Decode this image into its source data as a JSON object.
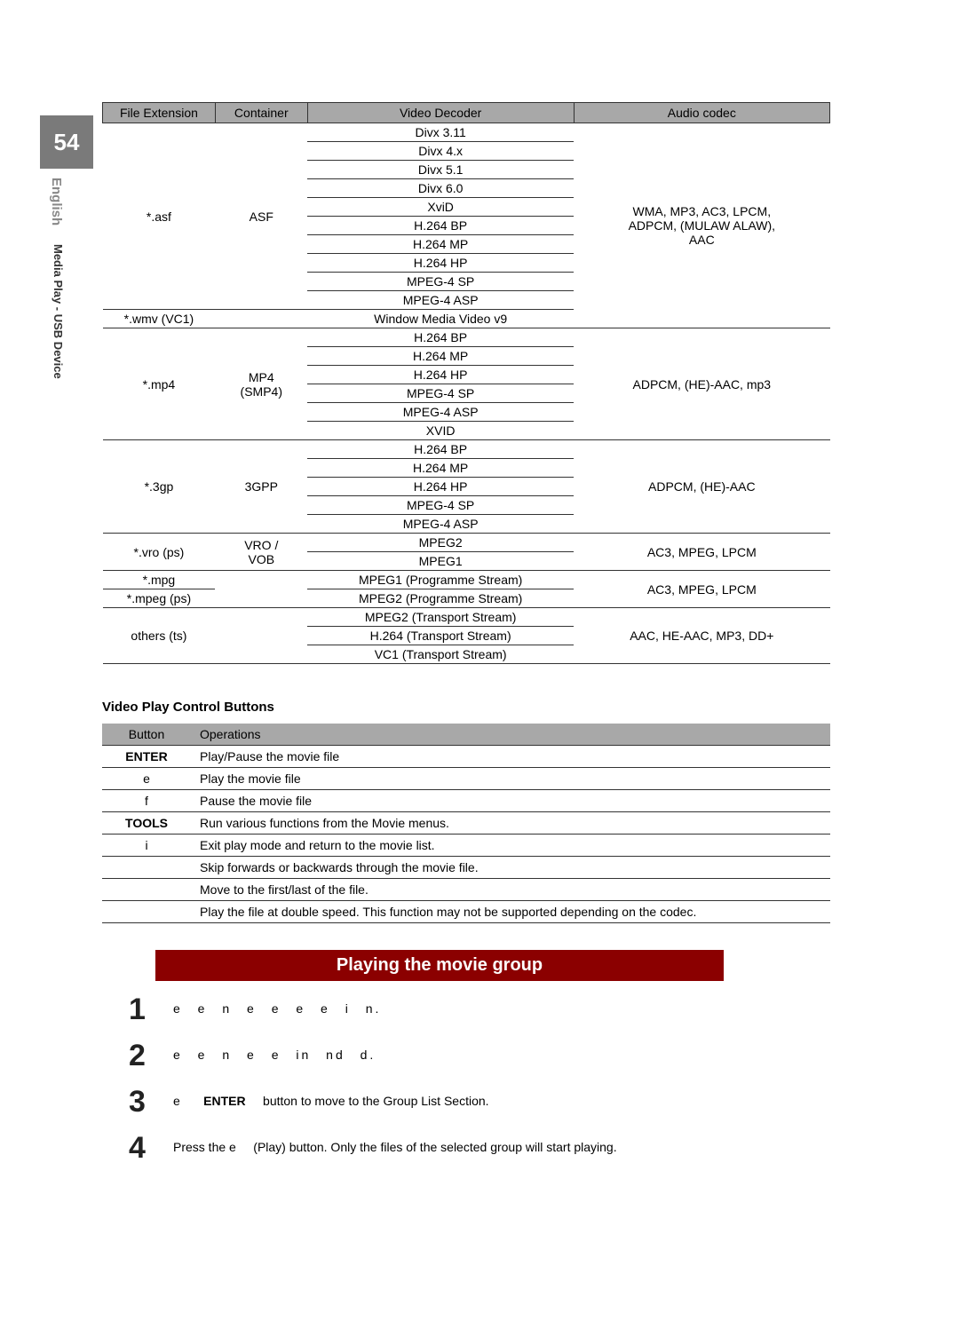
{
  "page": {
    "number": "54",
    "language": "English",
    "section": "Media Play - USB Device"
  },
  "codec_table": {
    "headers": [
      "File Extension",
      "Container",
      "Video Decoder",
      "Audio codec"
    ],
    "rows": [
      {
        "ext": "*.asf",
        "container": "ASF",
        "decoders": [
          "Divx 3.11",
          "Divx 4.x",
          "Divx 5.1",
          "Divx 6.0",
          "XviD",
          "H.264 BP",
          "H.264 MP",
          "H.264 HP",
          "MPEG-4 SP",
          "MPEG-4 ASP"
        ],
        "audio": "WMA, MP3, AC3, LPCM, ADPCM, (MULAW ALAW), AAC"
      },
      {
        "ext": "*.wmv (VC1)",
        "container": "",
        "decoders": [
          "Window Media Video v9"
        ],
        "audio": ""
      },
      {
        "ext": "*.mp4",
        "container": "MP4 (SMP4)",
        "decoders": [
          "H.264 BP",
          "H.264 MP",
          "H.264 HP",
          "MPEG-4 SP",
          "MPEG-4 ASP",
          "XVID"
        ],
        "audio": "ADPCM, (HE)-AAC, mp3"
      },
      {
        "ext": "*.3gp",
        "container": "3GPP",
        "decoders": [
          "H.264 BP",
          "H.264 MP",
          "H.264 HP",
          "MPEG-4 SP",
          "MPEG-4 ASP"
        ],
        "audio": "ADPCM, (HE)-AAC"
      },
      {
        "ext": "*.vro (ps)",
        "container": "VRO / VOB",
        "decoders": [
          "MPEG2",
          "MPEG1"
        ],
        "audio": "AC3, MPEG, LPCM"
      },
      {
        "ext": "*.mpg *.mpeg (ps)",
        "container": "",
        "decoders": [
          "MPEG1 (Programme Stream)",
          "MPEG2 (Programme Stream)"
        ],
        "audio": "AC3, MPEG, LPCM"
      },
      {
        "ext": "others (ts)",
        "container": "",
        "decoders": [
          "MPEG2 (Transport Stream)",
          "H.264 (Transport Stream)",
          "VC1 (Transport Stream)"
        ],
        "audio": "AAC, HE-AAC, MP3, DD+"
      }
    ]
  },
  "video_buttons": {
    "title": "Video Play Control Buttons",
    "headers": [
      "Button",
      "Operations"
    ],
    "rows": [
      {
        "button": "ENTER",
        "bold": true,
        "op": "Play/Pause the movie file"
      },
      {
        "button": "e",
        "bold": false,
        "op": "Play the movie file"
      },
      {
        "button": "f",
        "bold": false,
        "op": "Pause the movie file"
      },
      {
        "button": "TOOLS",
        "bold": true,
        "op": "Run various functions from the Movie menus."
      },
      {
        "button": "i",
        "bold": false,
        "op": "Exit play mode and return to the movie list."
      },
      {
        "button": "",
        "bold": false,
        "op": "Skip forwards or backwards through the movie file."
      },
      {
        "button": "",
        "bold": false,
        "op": "Move to the first/last of the file."
      },
      {
        "button": "",
        "bold": false,
        "op": "Play the file at double speed. This function may not be supported depending on the codec."
      }
    ]
  },
  "movie_group": {
    "title": "Playing the movie group",
    "step1": "e    e        n      e      e        e   e    i   n.",
    "step2": "e     e            n     e  e          in         nd     d.",
    "step3_pre": "e",
    "step3_enter": "ENTER",
    "step3_post": "button to move to the Group List Section.",
    "step4_pre": "Press the e",
    "step4_post": "(Play) button. Only the files of the selected group will start playing."
  }
}
